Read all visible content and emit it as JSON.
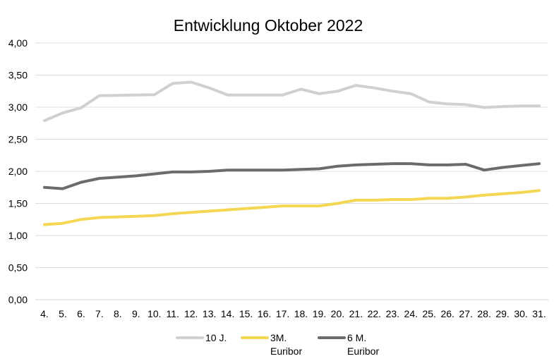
{
  "chart_data": {
    "type": "line",
    "title": "Entwicklung Oktober 2022",
    "xlabel": "",
    "ylabel": "",
    "categories": [
      "4.",
      "5.",
      "6.",
      "7.",
      "8.",
      "9.",
      "10.",
      "11.",
      "12.",
      "13.",
      "14.",
      "15.",
      "16.",
      "17.",
      "18.",
      "19.",
      "20.",
      "21.",
      "22.",
      "23.",
      "24.",
      "25.",
      "26.",
      "27.",
      "28.",
      "29.",
      "30.",
      "31."
    ],
    "ylim": [
      0,
      4
    ],
    "yticks": [
      "0,00",
      "0,50",
      "1,00",
      "1,50",
      "2,00",
      "2,50",
      "3,00",
      "3,50",
      "4,00"
    ],
    "grid": true,
    "legend_position": "bottom",
    "series": [
      {
        "name": "10 J.",
        "color": "#d0d0d0",
        "values": [
          2.79,
          2.91,
          2.99,
          3.18,
          3.185,
          3.19,
          3.195,
          3.37,
          3.39,
          3.3,
          3.19,
          3.19,
          3.19,
          3.19,
          3.28,
          3.21,
          3.25,
          3.34,
          3.3,
          3.25,
          3.21,
          3.08,
          3.05,
          3.04,
          2.995,
          3.01,
          3.02,
          3.02
        ]
      },
      {
        "name": "3M. Euribor",
        "label_lines": [
          "3M.",
          "Euribor"
        ],
        "color": "#f2d654",
        "values": [
          1.17,
          1.19,
          1.25,
          1.28,
          1.29,
          1.3,
          1.31,
          1.34,
          1.36,
          1.38,
          1.4,
          1.42,
          1.44,
          1.46,
          1.46,
          1.46,
          1.5,
          1.55,
          1.55,
          1.56,
          1.56,
          1.58,
          1.58,
          1.6,
          1.63,
          1.65,
          1.67,
          1.7
        ]
      },
      {
        "name": "6 M. Euribor",
        "label_lines": [
          "6 M.",
          "Euribor"
        ],
        "color": "#6b6b6b",
        "values": [
          1.75,
          1.73,
          1.83,
          1.89,
          1.91,
          1.93,
          1.96,
          1.99,
          1.99,
          2.0,
          2.02,
          2.02,
          2.02,
          2.02,
          2.03,
          2.04,
          2.08,
          2.1,
          2.11,
          2.12,
          2.12,
          2.1,
          2.1,
          2.11,
          2.02,
          2.06,
          2.09,
          2.12
        ]
      }
    ]
  }
}
